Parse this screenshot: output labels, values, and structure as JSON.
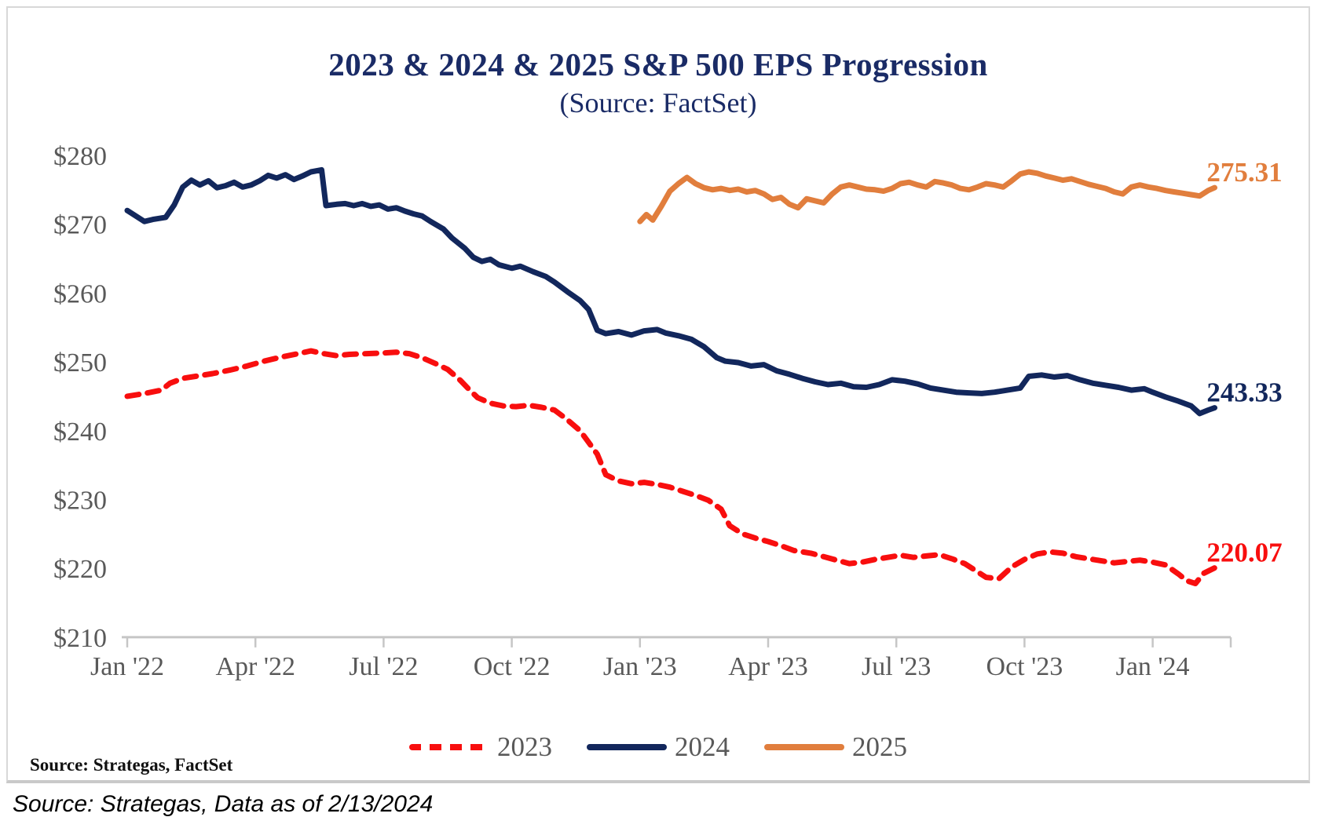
{
  "page": {
    "source_inside": "Source: Strategas, FactSet",
    "source_outside": "Source: Strategas, Data as of 2/13/2024"
  },
  "chart_data": {
    "type": "line",
    "title": "2023 & 2024 & 2025 S&P 500 EPS Progression",
    "subtitle": "(Source: FactSet)",
    "xlabel": "",
    "ylabel": "",
    "x_unit": "months since Jan 2022",
    "xlim_months": [
      0,
      25.5
    ],
    "ylim": [
      210,
      280
    ],
    "grid": false,
    "legend_position": "bottom",
    "title_color": "#1a2b66",
    "label_color": "#595959",
    "axis_color": "#c6c6c6",
    "y_ticks": [
      280,
      270,
      260,
      250,
      240,
      230,
      220,
      210
    ],
    "y_tick_labels": [
      "$280",
      "$270",
      "$260",
      "$250",
      "$240",
      "$230",
      "$220",
      "$210"
    ],
    "x_tick_months": [
      0,
      3,
      6,
      9,
      12,
      15,
      18,
      21,
      24
    ],
    "x_tick_labels": [
      "Jan '22",
      "Apr '22",
      "Jul '22",
      "Oct '22",
      "Jan '23",
      "Apr '23",
      "Jul '23",
      "Oct '23",
      "Jan '24"
    ],
    "series": [
      {
        "name": "2023",
        "color": "#f80e0e",
        "dash": true,
        "end_label": "220.07",
        "end_value": 220.07,
        "points": [
          [
            0,
            245.0
          ],
          [
            0.4,
            245.4
          ],
          [
            0.8,
            245.9
          ],
          [
            1,
            246.9
          ],
          [
            1.3,
            247.6
          ],
          [
            1.6,
            247.9
          ],
          [
            2,
            248.3
          ],
          [
            2.4,
            248.8
          ],
          [
            2.8,
            249.4
          ],
          [
            3.2,
            250.1
          ],
          [
            3.6,
            250.7
          ],
          [
            4,
            251.2
          ],
          [
            4.3,
            251.6
          ],
          [
            4.6,
            251.2
          ],
          [
            4.9,
            250.9
          ],
          [
            5.2,
            251.1
          ],
          [
            5.6,
            251.2
          ],
          [
            6,
            251.3
          ],
          [
            6.3,
            251.4
          ],
          [
            6.6,
            251.2
          ],
          [
            6.9,
            250.6
          ],
          [
            7.2,
            249.8
          ],
          [
            7.5,
            248.9
          ],
          [
            7.8,
            247.3
          ],
          [
            8,
            246.0
          ],
          [
            8.2,
            244.8
          ],
          [
            8.5,
            244.0
          ],
          [
            8.8,
            243.6
          ],
          [
            9.1,
            243.5
          ],
          [
            9.4,
            243.7
          ],
          [
            9.7,
            243.4
          ],
          [
            10,
            243.0
          ],
          [
            10.3,
            241.6
          ],
          [
            10.6,
            240.0
          ],
          [
            10.8,
            238.3
          ],
          [
            11,
            236.6
          ],
          [
            11.2,
            233.6
          ],
          [
            11.5,
            232.7
          ],
          [
            11.8,
            232.3
          ],
          [
            12.1,
            232.5
          ],
          [
            12.4,
            232.2
          ],
          [
            12.7,
            231.8
          ],
          [
            13,
            231.2
          ],
          [
            13.3,
            230.6
          ],
          [
            13.6,
            229.9
          ],
          [
            13.9,
            228.6
          ],
          [
            14.1,
            226.2
          ],
          [
            14.4,
            225.0
          ],
          [
            14.7,
            224.4
          ],
          [
            15,
            223.9
          ],
          [
            15.3,
            223.3
          ],
          [
            15.6,
            222.6
          ],
          [
            16,
            222.2
          ],
          [
            16.3,
            221.7
          ],
          [
            16.6,
            221.2
          ],
          [
            16.9,
            220.7
          ],
          [
            17.2,
            220.9
          ],
          [
            17.5,
            221.3
          ],
          [
            17.8,
            221.6
          ],
          [
            18.1,
            221.9
          ],
          [
            18.4,
            221.6
          ],
          [
            18.7,
            221.8
          ],
          [
            19,
            222.0
          ],
          [
            19.3,
            221.4
          ],
          [
            19.6,
            220.7
          ],
          [
            19.9,
            219.5
          ],
          [
            20.1,
            218.7
          ],
          [
            20.4,
            218.5
          ],
          [
            20.7,
            220.2
          ],
          [
            21,
            221.3
          ],
          [
            21.3,
            222.1
          ],
          [
            21.6,
            222.4
          ],
          [
            21.9,
            222.2
          ],
          [
            22.2,
            221.7
          ],
          [
            22.5,
            221.4
          ],
          [
            22.8,
            221.1
          ],
          [
            23.1,
            220.8
          ],
          [
            23.4,
            221.0
          ],
          [
            23.7,
            221.2
          ],
          [
            24,
            220.9
          ],
          [
            24.3,
            220.5
          ],
          [
            24.6,
            219.2
          ],
          [
            24.8,
            218.2
          ],
          [
            25,
            217.8
          ],
          [
            25.2,
            219.3
          ],
          [
            25.45,
            220.07
          ]
        ]
      },
      {
        "name": "2024",
        "color": "#12275c",
        "dash": false,
        "end_label": "243.33",
        "end_value": 243.33,
        "points": [
          [
            0,
            272.0
          ],
          [
            0.2,
            271.2
          ],
          [
            0.4,
            270.4
          ],
          [
            0.6,
            270.7
          ],
          [
            0.9,
            271.0
          ],
          [
            1.1,
            272.8
          ],
          [
            1.3,
            275.4
          ],
          [
            1.5,
            276.4
          ],
          [
            1.7,
            275.7
          ],
          [
            1.9,
            276.3
          ],
          [
            2.1,
            275.3
          ],
          [
            2.3,
            275.6
          ],
          [
            2.5,
            276.1
          ],
          [
            2.7,
            275.4
          ],
          [
            2.9,
            275.7
          ],
          [
            3.1,
            276.3
          ],
          [
            3.3,
            277.1
          ],
          [
            3.5,
            276.7
          ],
          [
            3.7,
            277.2
          ],
          [
            3.9,
            276.5
          ],
          [
            4.1,
            277.0
          ],
          [
            4.3,
            277.6
          ],
          [
            4.55,
            277.9
          ],
          [
            4.65,
            272.7
          ],
          [
            4.9,
            272.9
          ],
          [
            5.1,
            273.0
          ],
          [
            5.3,
            272.7
          ],
          [
            5.5,
            273.0
          ],
          [
            5.7,
            272.6
          ],
          [
            5.9,
            272.8
          ],
          [
            6.1,
            272.2
          ],
          [
            6.3,
            272.4
          ],
          [
            6.5,
            271.9
          ],
          [
            6.7,
            271.5
          ],
          [
            6.9,
            271.2
          ],
          [
            7.1,
            270.4
          ],
          [
            7.4,
            269.3
          ],
          [
            7.6,
            268.0
          ],
          [
            7.9,
            266.5
          ],
          [
            8.1,
            265.2
          ],
          [
            8.3,
            264.6
          ],
          [
            8.5,
            264.9
          ],
          [
            8.7,
            264.1
          ],
          [
            9,
            263.6
          ],
          [
            9.2,
            263.9
          ],
          [
            9.5,
            263.1
          ],
          [
            9.8,
            262.4
          ],
          [
            10,
            261.6
          ],
          [
            10.3,
            260.2
          ],
          [
            10.6,
            258.9
          ],
          [
            10.8,
            257.6
          ],
          [
            11,
            254.6
          ],
          [
            11.2,
            254.1
          ],
          [
            11.5,
            254.4
          ],
          [
            11.8,
            253.9
          ],
          [
            12.1,
            254.5
          ],
          [
            12.4,
            254.7
          ],
          [
            12.6,
            254.2
          ],
          [
            12.9,
            253.8
          ],
          [
            13.2,
            253.3
          ],
          [
            13.5,
            252.2
          ],
          [
            13.8,
            250.6
          ],
          [
            14,
            250.1
          ],
          [
            14.3,
            249.9
          ],
          [
            14.6,
            249.4
          ],
          [
            14.9,
            249.6
          ],
          [
            15.2,
            248.7
          ],
          [
            15.5,
            248.2
          ],
          [
            15.8,
            247.6
          ],
          [
            16.1,
            247.1
          ],
          [
            16.4,
            246.7
          ],
          [
            16.7,
            246.9
          ],
          [
            17,
            246.4
          ],
          [
            17.3,
            246.3
          ],
          [
            17.6,
            246.7
          ],
          [
            17.9,
            247.4
          ],
          [
            18.2,
            247.2
          ],
          [
            18.5,
            246.8
          ],
          [
            18.8,
            246.2
          ],
          [
            19.1,
            245.9
          ],
          [
            19.4,
            245.6
          ],
          [
            19.7,
            245.5
          ],
          [
            20,
            245.4
          ],
          [
            20.3,
            245.6
          ],
          [
            20.6,
            245.9
          ],
          [
            20.9,
            246.2
          ],
          [
            21.1,
            247.9
          ],
          [
            21.4,
            248.1
          ],
          [
            21.7,
            247.8
          ],
          [
            22,
            248.0
          ],
          [
            22.3,
            247.4
          ],
          [
            22.6,
            246.9
          ],
          [
            22.9,
            246.6
          ],
          [
            23.2,
            246.3
          ],
          [
            23.5,
            245.9
          ],
          [
            23.8,
            246.1
          ],
          [
            24,
            245.6
          ],
          [
            24.3,
            244.9
          ],
          [
            24.6,
            244.3
          ],
          [
            24.9,
            243.6
          ],
          [
            25.1,
            242.5
          ],
          [
            25.3,
            243.0
          ],
          [
            25.45,
            243.33
          ]
        ]
      },
      {
        "name": "2025",
        "color": "#e17e3d",
        "dash": false,
        "end_label": "275.31",
        "end_value": 275.31,
        "points": [
          [
            12,
            270.4
          ],
          [
            12.15,
            271.4
          ],
          [
            12.3,
            270.6
          ],
          [
            12.5,
            272.6
          ],
          [
            12.7,
            274.8
          ],
          [
            12.9,
            275.9
          ],
          [
            13.1,
            276.8
          ],
          [
            13.3,
            275.9
          ],
          [
            13.5,
            275.3
          ],
          [
            13.7,
            275.0
          ],
          [
            13.9,
            275.2
          ],
          [
            14.1,
            274.9
          ],
          [
            14.3,
            275.1
          ],
          [
            14.5,
            274.7
          ],
          [
            14.7,
            274.9
          ],
          [
            14.9,
            274.4
          ],
          [
            15.1,
            273.6
          ],
          [
            15.3,
            273.9
          ],
          [
            15.5,
            272.9
          ],
          [
            15.7,
            272.4
          ],
          [
            15.9,
            273.7
          ],
          [
            16.1,
            273.4
          ],
          [
            16.3,
            273.1
          ],
          [
            16.5,
            274.4
          ],
          [
            16.7,
            275.4
          ],
          [
            16.9,
            275.7
          ],
          [
            17.1,
            275.4
          ],
          [
            17.3,
            275.1
          ],
          [
            17.5,
            275.0
          ],
          [
            17.7,
            274.8
          ],
          [
            17.9,
            275.2
          ],
          [
            18.1,
            275.9
          ],
          [
            18.3,
            276.1
          ],
          [
            18.5,
            275.7
          ],
          [
            18.7,
            275.4
          ],
          [
            18.9,
            276.2
          ],
          [
            19.1,
            276.0
          ],
          [
            19.3,
            275.7
          ],
          [
            19.5,
            275.2
          ],
          [
            19.7,
            275.0
          ],
          [
            19.9,
            275.4
          ],
          [
            20.1,
            275.9
          ],
          [
            20.3,
            275.7
          ],
          [
            20.5,
            275.4
          ],
          [
            20.7,
            276.3
          ],
          [
            20.9,
            277.3
          ],
          [
            21.1,
            277.6
          ],
          [
            21.3,
            277.4
          ],
          [
            21.5,
            277.0
          ],
          [
            21.7,
            276.7
          ],
          [
            21.9,
            276.4
          ],
          [
            22.1,
            276.6
          ],
          [
            22.3,
            276.2
          ],
          [
            22.5,
            275.8
          ],
          [
            22.7,
            275.5
          ],
          [
            22.9,
            275.2
          ],
          [
            23.1,
            274.7
          ],
          [
            23.3,
            274.4
          ],
          [
            23.5,
            275.4
          ],
          [
            23.7,
            275.7
          ],
          [
            23.9,
            275.4
          ],
          [
            24.1,
            275.2
          ],
          [
            24.3,
            274.9
          ],
          [
            24.5,
            274.7
          ],
          [
            24.7,
            274.5
          ],
          [
            24.9,
            274.3
          ],
          [
            25.1,
            274.1
          ],
          [
            25.3,
            274.9
          ],
          [
            25.45,
            275.31
          ]
        ]
      }
    ]
  }
}
